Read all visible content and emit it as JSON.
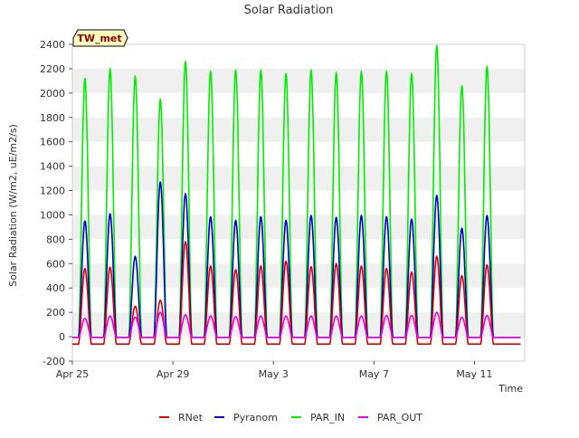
{
  "chart_data": {
    "type": "line",
    "title": "Solar Radiation",
    "xlabel": "Time",
    "ylabel": "Solar Radiation (W/m2, uE/m2/s)",
    "badge": "TW_met",
    "ylim": [
      -200,
      2400
    ],
    "yticks": [
      -200,
      0,
      200,
      400,
      600,
      800,
      1000,
      1200,
      1400,
      1600,
      1800,
      2000,
      2200,
      2400
    ],
    "xlim": [
      "2021-04-25",
      "2021-05-13"
    ],
    "xticks": [
      {
        "date": "2021-04-25",
        "label": "Apr 25"
      },
      {
        "date": "2021-04-29",
        "label": "Apr 29"
      },
      {
        "date": "2021-05-03",
        "label": "May 3"
      },
      {
        "date": "2021-05-07",
        "label": "May 7"
      },
      {
        "date": "2021-05-11",
        "label": "May 11"
      }
    ],
    "grid": "horizontal bands",
    "legend_position": "bottom",
    "colors": {
      "RNet": "#dd0000",
      "Pyranom": "#0000cc",
      "PAR_IN": "#00ee00",
      "PAR_OUT": "#ee00ee",
      "band": "#f0f0f0",
      "badge_fill": "#ffffc0",
      "badge_text": "#8b0000"
    },
    "days": [
      "2021-04-25",
      "2021-04-26",
      "2021-04-27",
      "2021-04-28",
      "2021-04-29",
      "2021-04-30",
      "2021-05-01",
      "2021-05-02",
      "2021-05-03",
      "2021-05-04",
      "2021-05-05",
      "2021-05-06",
      "2021-05-07",
      "2021-05-08",
      "2021-05-09",
      "2021-05-10",
      "2021-05-11",
      "2021-05-12"
    ],
    "series": [
      {
        "name": "RNet",
        "night": -60,
        "peaks": [
          560,
          570,
          250,
          300,
          780,
          580,
          550,
          580,
          620,
          575,
          600,
          580,
          560,
          530,
          660,
          500,
          590,
          0
        ]
      },
      {
        "name": "Pyranom",
        "night": -5,
        "peaks": [
          950,
          1010,
          660,
          1270,
          1175,
          985,
          955,
          985,
          955,
          995,
          980,
          995,
          985,
          965,
          1160,
          890,
          995,
          0
        ]
      },
      {
        "name": "PAR_IN",
        "night": -5,
        "peaks": [
          2120,
          2200,
          2140,
          1950,
          2260,
          2180,
          2190,
          2190,
          2160,
          2190,
          2170,
          2180,
          2180,
          2160,
          2390,
          2060,
          2220,
          0
        ]
      },
      {
        "name": "PAR_OUT",
        "night": -5,
        "peaks": [
          150,
          170,
          160,
          200,
          180,
          170,
          165,
          170,
          170,
          170,
          170,
          170,
          175,
          175,
          200,
          160,
          175,
          0
        ]
      }
    ]
  }
}
